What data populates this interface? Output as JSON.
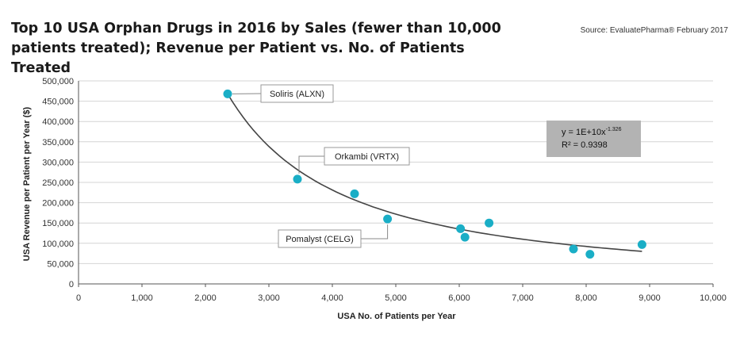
{
  "header": {
    "title": "Top 10 USA Orphan Drugs in 2016 by Sales (fewer than 10,000 patients treated); Revenue per Patient vs. No. of Patients Treated",
    "source": "Source: EvaluatePharma® February 2017"
  },
  "chart_data": {
    "type": "scatter",
    "xlabel": "USA No. of Patients per Year",
    "ylabel": "USA Revenue per Patient per Year ($)",
    "xlim": [
      0,
      10000
    ],
    "ylim": [
      0,
      500000
    ],
    "x_ticks": [
      "0",
      "1,000",
      "2,000",
      "3,000",
      "4,000",
      "5,000",
      "6,000",
      "7,000",
      "8,000",
      "9,000",
      "10,000"
    ],
    "y_ticks": [
      "0",
      "50,000",
      "100,000",
      "150,000",
      "200,000",
      "250,000",
      "300,000",
      "350,000",
      "400,000",
      "450,000",
      "500,000"
    ],
    "grid": "horizontal",
    "marker_color": "#1aaec6",
    "trend_color": "#444444",
    "points": [
      {
        "x": 2350,
        "y": 468000
      },
      {
        "x": 3450,
        "y": 258000
      },
      {
        "x": 4350,
        "y": 222000
      },
      {
        "x": 4870,
        "y": 160000
      },
      {
        "x": 6020,
        "y": 136000
      },
      {
        "x": 6090,
        "y": 115000
      },
      {
        "x": 6470,
        "y": 150000
      },
      {
        "x": 7800,
        "y": 86000
      },
      {
        "x": 8060,
        "y": 73000
      },
      {
        "x": 8880,
        "y": 97000
      }
    ],
    "trendline": {
      "type": "power",
      "x_range": [
        2350,
        8880
      ],
      "equation": "y = 1E+10x",
      "exponent": "-1.326",
      "r2_label": "R² = 0.9398",
      "box_color": "#b3b3b3"
    },
    "annotations": [
      {
        "label": "Soliris (ALXN)",
        "x": 2350,
        "y": 468000
      },
      {
        "label": "Orkambi (VRTX)",
        "x": 3450,
        "y": 258000
      },
      {
        "label": "Pomalyst (CELG)",
        "x": 4870,
        "y": 160000
      }
    ]
  }
}
